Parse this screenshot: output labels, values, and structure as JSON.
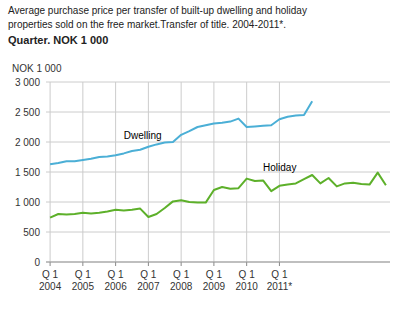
{
  "chart_data": {
    "type": "line",
    "title": [
      "Average purchase price per transfer of built-up dwelling and holiday",
      "properties sold on the free market.Transfer of title. 2004-2011*."
    ],
    "subtitle": "Quarter. NOK 1 000",
    "y_label": "NOK 1 000",
    "categories": [
      "Q 1\n2004",
      null,
      null,
      null,
      "Q 1\n2005",
      null,
      null,
      null,
      "Q 1\n2006",
      null,
      null,
      null,
      "Q 1\n2007",
      null,
      null,
      null,
      "Q 1\n2008",
      null,
      null,
      null,
      "Q 1\n2009",
      null,
      null,
      null,
      "Q 1\n2010",
      null,
      null,
      null,
      "Q 1\n2011*",
      null,
      null,
      null,
      null,
      null,
      null,
      null,
      null,
      null,
      null,
      null,
      null,
      null
    ],
    "series": [
      {
        "name": "Dwelling",
        "color": "#4bafd6",
        "values": [
          1630,
          1650,
          1680,
          1680,
          1700,
          1720,
          1750,
          1760,
          1780,
          1810,
          1850,
          1870,
          1920,
          1960,
          1990,
          2000,
          2120,
          2180,
          2250,
          2280,
          2310,
          2320,
          2340,
          2390,
          2250,
          2260,
          2270,
          2280,
          2380,
          2420,
          2440,
          2450,
          2680,
          null,
          null,
          null,
          null,
          null,
          null,
          null,
          null,
          null
        ]
      },
      {
        "name": "Holiday",
        "color": "#5db02a",
        "values": [
          740,
          800,
          790,
          800,
          820,
          810,
          820,
          840,
          870,
          860,
          870,
          890,
          750,
          800,
          900,
          1010,
          1030,
          1000,
          990,
          990,
          1200,
          1250,
          1220,
          1230,
          1390,
          1350,
          1360,
          1180,
          1270,
          1290,
          1310,
          1380,
          1450,
          1310,
          1400,
          1260,
          1310,
          1320,
          1300,
          1290,
          1490,
          1280
        ]
      }
    ],
    "annotations": [
      {
        "text": "Dwelling",
        "x": 9,
        "y": 2000
      },
      {
        "text": "Holiday",
        "x": 26,
        "y": 1460
      }
    ],
    "ylim": [
      0,
      3000
    ],
    "yticks": [
      0,
      500,
      {
        "value": 1000,
        "label": "1 000"
      },
      {
        "value": 1500,
        "label": "1 500"
      },
      {
        "value": 2000,
        "label": "2 000"
      },
      {
        "value": 2500,
        "label": "2 500"
      },
      {
        "value": 3000,
        "label": "3 000"
      }
    ],
    "grid": true
  }
}
